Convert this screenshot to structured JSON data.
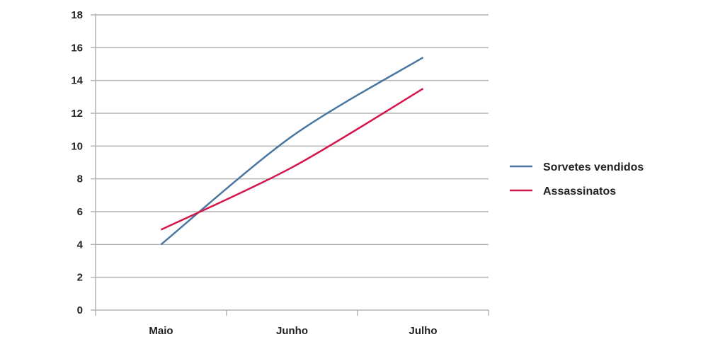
{
  "chart_data": {
    "type": "line",
    "categories": [
      "Maio",
      "Junho",
      "Julho"
    ],
    "series": [
      {
        "name": "Sorvetes vendidos",
        "color": "#4a77a0",
        "values": [
          4,
          10.6,
          15.4
        ]
      },
      {
        "name": "Assassinatos",
        "color": "#d4174a",
        "values": [
          4.9,
          8.7,
          13.5
        ]
      }
    ],
    "ylim": [
      0,
      18
    ],
    "yticks": [
      "0",
      "2",
      "4",
      "6",
      "8",
      "10",
      "12",
      "14",
      "16",
      "18"
    ],
    "grid": true,
    "legend_position": "right"
  }
}
